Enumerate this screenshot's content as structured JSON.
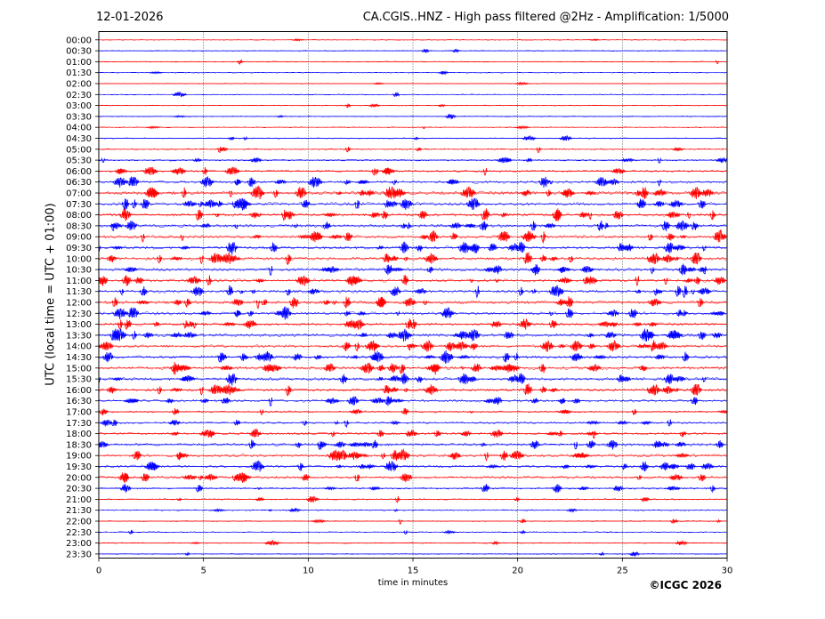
{
  "header": {
    "date": "12-01-2026",
    "title": "CA.CGIS..HNZ - High pass filtered @2Hz - Amplification: 1/5000"
  },
  "footer": {
    "copyright": "©ICGC 2026"
  },
  "chart_data": {
    "type": "line",
    "title": "CA.CGIS..HNZ - High pass filtered @2Hz - Amplification: 1/5000",
    "xlabel": "time in minutes",
    "ylabel": "UTC (local time = UTC + 01:00)",
    "xlim": [
      0,
      30
    ],
    "x_ticks": [
      "0",
      "5",
      "10",
      "15",
      "20",
      "25",
      "30"
    ],
    "grid": "vertical dotted lines at 5, 10, 15, 20, 25 minutes",
    "row_colors": [
      "#ff0000",
      "#0000ff"
    ],
    "rows": [
      "00:00",
      "00:30",
      "01:00",
      "01:30",
      "02:00",
      "02:30",
      "03:00",
      "03:30",
      "04:00",
      "04:30",
      "05:00",
      "05:30",
      "06:00",
      "06:30",
      "07:00",
      "07:30",
      "08:00",
      "08:30",
      "09:00",
      "09:30",
      "10:00",
      "10:30",
      "11:00",
      "11:30",
      "12:00",
      "12:30",
      "13:00",
      "13:30",
      "14:00",
      "14:30",
      "15:00",
      "15:30",
      "16:00",
      "16:30",
      "17:00",
      "17:30",
      "18:00",
      "18:30",
      "19:00",
      "19:30",
      "20:00",
      "20:30",
      "21:00",
      "21:30",
      "22:00",
      "22:30",
      "23:00",
      "23:30"
    ],
    "activity_level": [
      0.05,
      0.06,
      0.06,
      0.05,
      0.06,
      0.06,
      0.07,
      0.08,
      0.1,
      0.15,
      0.22,
      0.35,
      0.5,
      0.75,
      0.95,
      0.9,
      0.85,
      0.8,
      0.8,
      0.85,
      0.85,
      0.8,
      0.85,
      0.85,
      0.85,
      0.85,
      0.8,
      0.85,
      0.8,
      0.85,
      0.85,
      0.8,
      0.8,
      0.7,
      0.4,
      0.45,
      0.6,
      0.7,
      0.75,
      0.7,
      0.65,
      0.4,
      0.2,
      0.15,
      0.15,
      0.12,
      0.12,
      0.08
    ]
  }
}
